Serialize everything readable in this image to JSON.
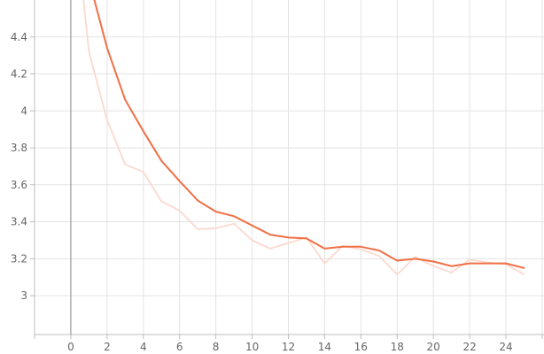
{
  "chart_data": {
    "type": "line",
    "title": "",
    "xlabel": "",
    "ylabel": "",
    "xlim": [
      -2,
      26.1
    ],
    "ylim": [
      2.79,
      4.6
    ],
    "xticks": [
      0,
      2,
      4,
      6,
      8,
      10,
      12,
      14,
      16,
      18,
      20,
      22,
      24
    ],
    "yticks": [
      3,
      3.2,
      3.4,
      3.6,
      3.8,
      4,
      4.2,
      4.4
    ],
    "grid": true,
    "series": [
      {
        "role": "raw",
        "color": "#fbd9cf",
        "x": [
          0.7,
          1,
          2,
          3,
          4,
          5,
          6,
          7,
          8,
          9,
          10,
          11,
          12,
          13,
          14,
          15,
          16,
          17,
          18,
          19,
          20,
          21,
          22,
          23,
          24,
          25
        ],
        "y": [
          4.6,
          4.32,
          3.95,
          3.71,
          3.67,
          3.51,
          3.46,
          3.36,
          3.365,
          3.39,
          3.3,
          3.255,
          3.285,
          3.315,
          3.175,
          3.27,
          3.25,
          3.215,
          3.115,
          3.21,
          3.16,
          3.125,
          3.195,
          3.18,
          3.17,
          3.115
        ]
      },
      {
        "role": "smoothed",
        "color": "#f07046",
        "x": [
          1.3,
          2,
          3,
          4,
          5,
          6,
          7,
          8,
          9,
          10,
          11,
          12,
          13,
          14,
          15,
          16,
          17,
          18,
          19,
          20,
          21,
          22,
          23,
          24,
          25
        ],
        "y": [
          4.6,
          4.34,
          4.06,
          3.89,
          3.73,
          3.62,
          3.515,
          3.455,
          3.43,
          3.38,
          3.33,
          3.315,
          3.31,
          3.255,
          3.265,
          3.265,
          3.245,
          3.19,
          3.2,
          3.185,
          3.16,
          3.175,
          3.175,
          3.175,
          3.15
        ]
      }
    ]
  }
}
